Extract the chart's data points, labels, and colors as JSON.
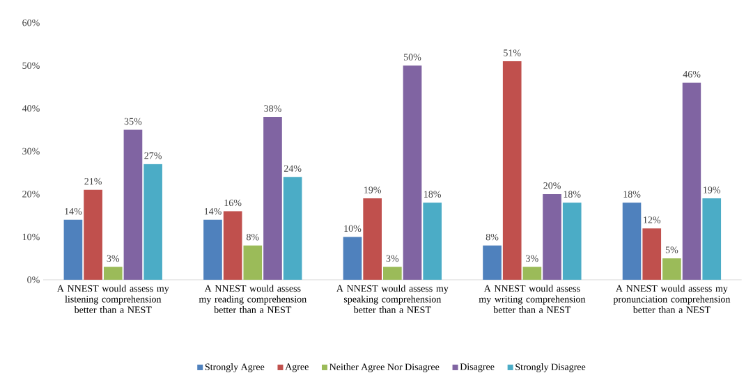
{
  "chart_data": {
    "type": "bar",
    "categories": [
      "A NNEST would assess my listening comprehension better than a NEST",
      "A NNEST would assess my reading comprehension better than a NEST",
      "A NNEST would assess my speaking comprehension better than a NEST",
      "A NNEST would assess my writing comprehension better than a NEST",
      "A NNEST would assess my pronunciation comprehension better than a NEST"
    ],
    "series": [
      {
        "name": "Strongly Agree",
        "color": "#4f81bd",
        "values": [
          14,
          14,
          10,
          8,
          18
        ],
        "value_labels": [
          "14%",
          "14%",
          "10%",
          "8%",
          "18%"
        ]
      },
      {
        "name": "Agree",
        "color": "#c0504d",
        "values": [
          21,
          16,
          19,
          51,
          12
        ],
        "value_labels": [
          "21%",
          "16%",
          "19%",
          "51%",
          "12%"
        ]
      },
      {
        "name": "Neither Agree Nor Disagree",
        "color": "#9bbb59",
        "values": [
          3,
          8,
          3,
          3,
          5
        ],
        "value_labels": [
          "3%",
          "8%",
          "3%",
          "3%",
          "5%"
        ]
      },
      {
        "name": "Disagree",
        "color": "#8064a2",
        "values": [
          35,
          38,
          50,
          20,
          46
        ],
        "value_labels": [
          "35%",
          "38%",
          "50%",
          "20%",
          "46%"
        ]
      },
      {
        "name": "Strongly Disagree",
        "color": "#4bacc6",
        "values": [
          27,
          24,
          18,
          18,
          19
        ],
        "value_labels": [
          "27%",
          "24%",
          "18%",
          "18%",
          "19%"
        ]
      }
    ],
    "ylim": [
      0,
      60
    ],
    "yticks": [
      {
        "value": 0,
        "label": "0%"
      },
      {
        "value": 10,
        "label": "10%"
      },
      {
        "value": 20,
        "label": "20%"
      },
      {
        "value": 30,
        "label": "30%"
      },
      {
        "value": 40,
        "label": "40%"
      },
      {
        "value": 50,
        "label": "50%"
      },
      {
        "value": 60,
        "label": "60%"
      }
    ],
    "legend": "bottom"
  }
}
